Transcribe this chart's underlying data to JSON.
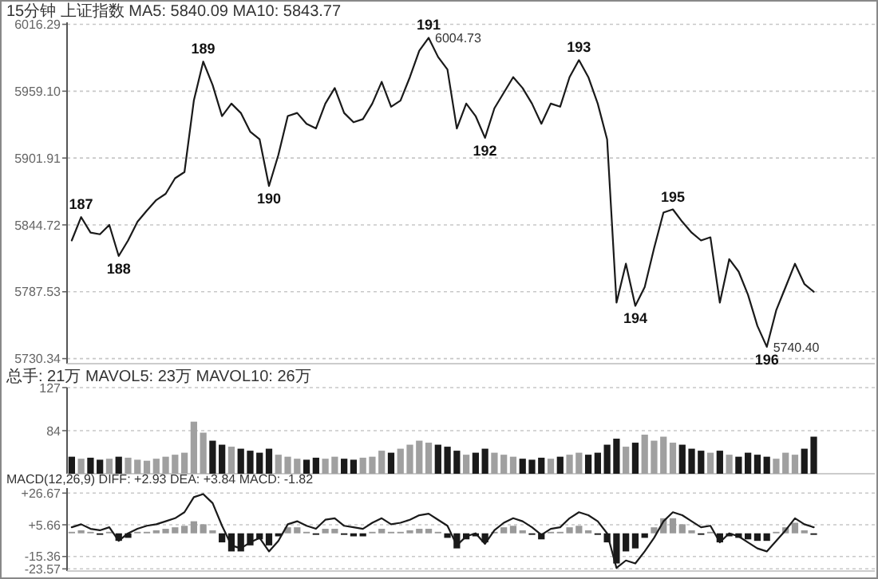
{
  "chart_data": [
    {
      "type": "line",
      "title": "15分钟 上证指数 MA5: 5840.09 MA10: 5843.77",
      "categories": [
        null,
        null,
        null,
        null,
        null,
        null,
        null,
        null,
        null,
        null,
        null,
        null,
        null,
        null,
        null,
        null,
        null,
        null,
        null,
        null,
        null,
        null,
        null,
        null,
        null,
        null,
        null,
        null,
        null,
        null,
        null,
        null,
        null,
        null,
        null,
        null,
        null,
        null,
        null,
        null,
        null,
        null,
        null,
        null,
        null,
        null,
        null,
        null,
        null,
        null,
        null,
        null,
        null,
        null,
        null,
        null,
        null,
        null,
        null,
        null,
        null,
        null,
        null,
        null,
        null,
        null,
        null,
        null,
        null,
        null,
        null,
        null,
        null,
        null,
        null,
        null,
        null,
        null,
        null,
        null,
        null,
        null,
        null,
        null,
        null,
        null
      ],
      "series": [
        {
          "color": "#1a1a1a",
          "values": [
            5831.4,
            5851.4,
            5838.1,
            5836.7,
            5844.7,
            5818.1,
            5831.4,
            5847.4,
            5857.0,
            5866.0,
            5871.3,
            5884.6,
            5889.9,
            5951.1,
            5984.4,
            5964.4,
            5937.8,
            5948.5,
            5940.5,
            5924.5,
            5917.9,
            5878.0,
            5904.6,
            5937.8,
            5940.5,
            5931.2,
            5927.2,
            5948.5,
            5961.8,
            5940.5,
            5932.5,
            5935.2,
            5948.5,
            5967.1,
            5945.8,
            5951.1,
            5971.1,
            5993.7,
            6004.73,
            5988.4,
            5977.7,
            5927.2,
            5948.5,
            5937.8,
            5919.2,
            5944.5,
            5957.8,
            5971.1,
            5961.8,
            5948.5,
            5931.2,
            5948.5,
            5945.8,
            5971.1,
            5985.7,
            5971.1,
            5948.5,
            5917.9,
            5778.2,
            5811.5,
            5775.5,
            5791.5,
            5824.8,
            5855.3,
            5858.0,
            5847.4,
            5838.1,
            5831.4,
            5834.1,
            5778.2,
            5815.4,
            5804.8,
            5784.9,
            5758.3,
            5740.4,
            5771.6,
            5791.5,
            5811.5,
            5794.2,
            5787.5,
            null,
            null,
            null,
            null,
            null,
            null
          ]
        }
      ],
      "ylim": [
        5726,
        6018
      ],
      "yticks": [
        6016.29,
        {
          "value": 5959.1,
          "label": "5959.10"
        },
        5901.91,
        5844.72,
        5787.53,
        5730.34
      ],
      "grid": "y",
      "tick_labels": "y",
      "annotations": [
        {
          "text": "187",
          "y": 5851.4
        },
        {
          "text": "188",
          "y": 5818.1
        },
        {
          "text": "189",
          "y": 5984.4
        },
        {
          "text": "190",
          "y": 5878.0
        },
        {
          "text": "191",
          "y": 6004.73
        },
        "6004.73",
        {
          "text": "192",
          "y": 5919.2
        },
        {
          "text": "193",
          "y": 5985.7
        },
        {
          "text": "194",
          "y": 5775.5
        },
        {
          "text": "195",
          "y": 5858.0
        },
        {
          "text": "196",
          "y": 5740.4
        },
        "5740.40"
      ]
    },
    {
      "type": "bar",
      "title": "总手: 21万 MAVOL5: 23万 MAVOL10: 26万",
      "categories": [
        null,
        null,
        null,
        null,
        null,
        null,
        null,
        null,
        null,
        null,
        null,
        null,
        null,
        null,
        null,
        null,
        null,
        null,
        null,
        null,
        null,
        null,
        null,
        null,
        null,
        null,
        null,
        null,
        null,
        null,
        null,
        null,
        null,
        null,
        null,
        null,
        null,
        null,
        null,
        null,
        null,
        null,
        null,
        null,
        null,
        null,
        null,
        null,
        null,
        null,
        null,
        null,
        null,
        null,
        null,
        null,
        null,
        null,
        null,
        null,
        null,
        null,
        null,
        null,
        null,
        null,
        null,
        null,
        null,
        null,
        null,
        null,
        null,
        null,
        null,
        null,
        null,
        null,
        null,
        null,
        null,
        null,
        null,
        null,
        null,
        null
      ],
      "values": [
        58,
        56,
        57,
        55,
        56,
        58,
        57,
        55,
        54,
        56,
        58,
        60,
        62,
        93,
        82,
        74,
        70,
        68,
        66,
        64,
        62,
        66,
        60,
        58,
        56,
        55,
        57,
        56,
        58,
        56,
        55,
        57,
        58,
        64,
        62,
        66,
        70,
        74,
        72,
        70,
        68,
        64,
        60,
        62,
        66,
        62,
        60,
        58,
        56,
        55,
        57,
        56,
        58,
        60,
        62,
        60,
        62,
        70,
        76,
        68,
        72,
        80,
        74,
        78,
        72,
        70,
        66,
        64,
        62,
        64,
        60,
        58,
        62,
        60,
        58,
        56,
        62,
        60,
        66,
        78,
        null,
        null,
        null,
        null,
        null,
        null
      ],
      "colors": [
        "#1a1a1a",
        "#a0a0a0",
        "#1a1a1a",
        "#1a1a1a",
        "#a0a0a0",
        "#1a1a1a",
        "#a0a0a0",
        "#a0a0a0",
        "#a0a0a0",
        "#a0a0a0",
        "#a0a0a0",
        "#a0a0a0",
        "#a0a0a0",
        "#a0a0a0",
        "#a0a0a0",
        "#1a1a1a",
        "#1a1a1a",
        "#a0a0a0",
        "#1a1a1a",
        "#1a1a1a",
        "#1a1a1a",
        "#1a1a1a",
        "#a0a0a0",
        "#a0a0a0",
        "#a0a0a0",
        "#1a1a1a",
        "#1a1a1a",
        "#a0a0a0",
        "#a0a0a0",
        "#1a1a1a",
        "#1a1a1a",
        "#a0a0a0",
        "#a0a0a0",
        "#a0a0a0",
        "#1a1a1a",
        "#a0a0a0",
        "#a0a0a0",
        "#a0a0a0",
        "#a0a0a0",
        "#1a1a1a",
        "#1a1a1a",
        "#1a1a1a",
        "#a0a0a0",
        "#1a1a1a",
        "#1a1a1a",
        "#a0a0a0",
        "#a0a0a0",
        "#a0a0a0",
        "#1a1a1a",
        "#1a1a1a",
        "#1a1a1a",
        "#a0a0a0",
        "#1a1a1a",
        "#a0a0a0",
        "#a0a0a0",
        "#1a1a1a",
        "#1a1a1a",
        "#1a1a1a",
        "#1a1a1a",
        "#a0a0a0",
        "#1a1a1a",
        "#a0a0a0",
        "#a0a0a0",
        "#a0a0a0",
        "#a0a0a0",
        "#1a1a1a",
        "#1a1a1a",
        "#1a1a1a",
        "#a0a0a0",
        "#1a1a1a",
        "#a0a0a0",
        "#1a1a1a",
        "#1a1a1a",
        "#1a1a1a",
        "#1a1a1a",
        "#a0a0a0",
        "#a0a0a0",
        "#a0a0a0",
        "#1a1a1a",
        "#1a1a1a",
        null,
        null,
        null,
        null,
        null,
        null
      ],
      "ylim": [
        41,
        127
      ],
      "yticks": [
        84,
        127
      ],
      "grid": "y",
      "tick_labels": "y"
    },
    {
      "type": "bar",
      "title": "MACD(12,26,9) DIFF: +2.93 DEA: +3.84 MACD: -1.82",
      "categories": [
        null,
        null,
        null,
        null,
        null,
        null,
        null,
        null,
        null,
        null,
        null,
        null,
        null,
        null,
        null,
        null,
        null,
        null,
        null,
        null,
        null,
        null,
        null,
        null,
        null,
        null,
        null,
        null,
        null,
        null,
        null,
        null,
        null,
        null,
        null,
        null,
        null,
        null,
        null,
        null,
        null,
        null,
        null,
        null,
        null,
        null,
        null,
        null,
        null,
        null,
        null,
        null,
        null,
        null,
        null,
        null,
        null,
        null,
        null,
        null,
        null,
        null,
        null,
        null,
        null,
        null,
        null,
        null,
        null,
        null,
        null,
        null,
        null,
        null,
        null,
        null,
        null,
        null,
        null,
        null,
        null,
        null,
        null,
        null,
        null,
        null
      ],
      "series": [
        {
          "values": [
            1,
            2,
            1,
            -1,
            1,
            -5,
            -3,
            1,
            1,
            2,
            3,
            4,
            5,
            8,
            6,
            2,
            -6,
            -12,
            -12,
            -8,
            -4,
            -8,
            -2,
            4,
            4,
            1,
            -1,
            3,
            3,
            -1,
            -2,
            -2,
            1,
            3,
            1,
            1,
            2,
            3,
            3,
            1,
            -3,
            -10,
            -4,
            -2,
            -6,
            1,
            4,
            5,
            2,
            -1,
            -4,
            1,
            1,
            4,
            5,
            2,
            -1,
            -6,
            -20,
            -12,
            -10,
            -3,
            4,
            10,
            10,
            6,
            2,
            -1,
            1,
            -6,
            -2,
            -3,
            -4,
            -5,
            -5,
            1,
            4,
            7,
            2,
            -1,
            null,
            null,
            null,
            null,
            null,
            null
          ],
          "colors": [
            "#9a9a9a",
            "#9a9a9a",
            "#9a9a9a",
            "#1a1a1a",
            "#9a9a9a",
            "#1a1a1a",
            "#1a1a1a",
            "#9a9a9a",
            "#9a9a9a",
            "#9a9a9a",
            "#9a9a9a",
            "#9a9a9a",
            "#9a9a9a",
            "#9a9a9a",
            "#9a9a9a",
            "#9a9a9a",
            "#1a1a1a",
            "#1a1a1a",
            "#1a1a1a",
            "#1a1a1a",
            "#1a1a1a",
            "#1a1a1a",
            "#1a1a1a",
            "#9a9a9a",
            "#9a9a9a",
            "#9a9a9a",
            "#1a1a1a",
            "#9a9a9a",
            "#9a9a9a",
            "#1a1a1a",
            "#1a1a1a",
            "#1a1a1a",
            "#9a9a9a",
            "#9a9a9a",
            "#9a9a9a",
            "#9a9a9a",
            "#9a9a9a",
            "#9a9a9a",
            "#9a9a9a",
            "#9a9a9a",
            "#1a1a1a",
            "#1a1a1a",
            "#1a1a1a",
            "#1a1a1a",
            "#1a1a1a",
            "#9a9a9a",
            "#9a9a9a",
            "#9a9a9a",
            "#9a9a9a",
            "#1a1a1a",
            "#1a1a1a",
            "#9a9a9a",
            "#9a9a9a",
            "#9a9a9a",
            "#9a9a9a",
            "#9a9a9a",
            "#1a1a1a",
            "#1a1a1a",
            "#1a1a1a",
            "#1a1a1a",
            "#1a1a1a",
            "#1a1a1a",
            "#9a9a9a",
            "#9a9a9a",
            "#9a9a9a",
            "#9a9a9a",
            "#9a9a9a",
            "#1a1a1a",
            "#9a9a9a",
            "#1a1a1a",
            "#1a1a1a",
            "#1a1a1a",
            "#1a1a1a",
            "#1a1a1a",
            "#1a1a1a",
            "#9a9a9a",
            "#9a9a9a",
            "#9a9a9a",
            "#9a9a9a",
            "#1a1a1a",
            null,
            null,
            null,
            null,
            null,
            null
          ]
        },
        {
          "type": "line",
          "color": "#1a1a1a",
          "values": [
            4,
            6,
            3,
            2,
            4,
            -5,
            0,
            3,
            5,
            6,
            8,
            10,
            14,
            24,
            26,
            20,
            5,
            -8,
            -10,
            -6,
            -3,
            -12,
            -5,
            6,
            8,
            5,
            3,
            9,
            10,
            5,
            4,
            3,
            7,
            10,
            6,
            7,
            9,
            12,
            13,
            9,
            5,
            -8,
            -2,
            0,
            -7,
            2,
            7,
            10,
            8,
            4,
            -1,
            3,
            4,
            10,
            14,
            12,
            8,
            0,
            -23,
            -18,
            -20,
            -12,
            -3,
            8,
            14,
            12,
            8,
            4,
            5,
            -6,
            0,
            -2,
            -6,
            -10,
            -12,
            -5,
            2,
            10,
            6,
            4,
            null,
            null,
            null,
            null,
            null,
            null
          ]
        }
      ],
      "ylim": [
        -25,
        30
      ],
      "yticks": [
        {
          "value": 26.67,
          "label": "+26.67"
        },
        {
          "value": 5.66,
          "label": "+5.66"
        },
        -15.36,
        -23.57
      ],
      "grid": "y",
      "tick_labels": "y"
    }
  ]
}
